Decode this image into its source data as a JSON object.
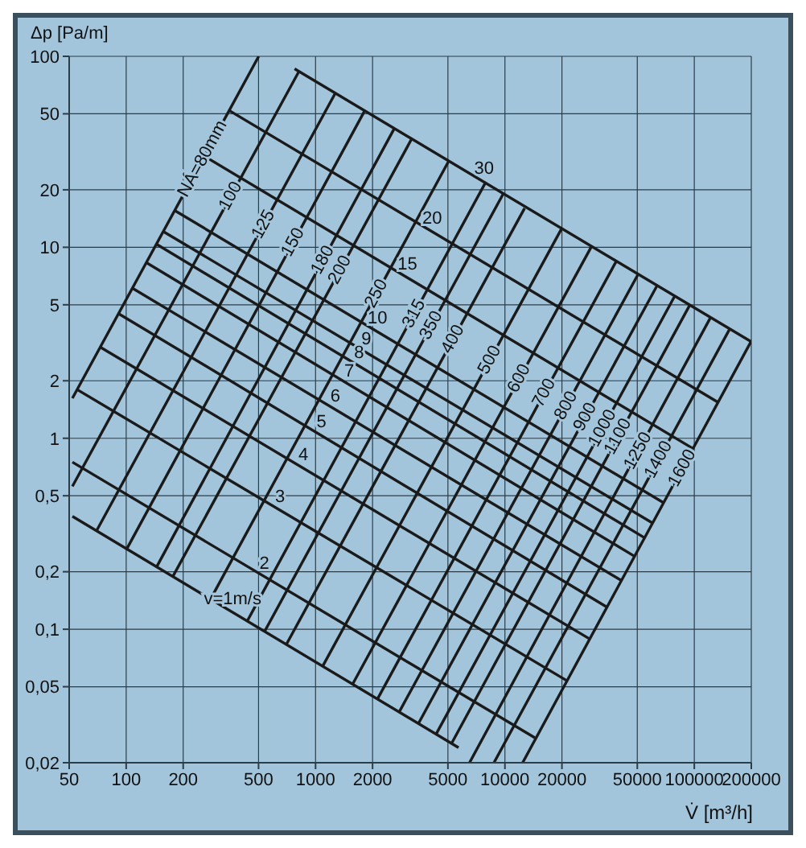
{
  "chart_data": {
    "type": "line",
    "xlabel": "V̇ [m³/h]",
    "ylabel": "Δp [Pa/m]",
    "log": "xy",
    "grid": true,
    "xlim": [
      50,
      200000
    ],
    "xticks": [
      50,
      100,
      200,
      500,
      1000,
      2000,
      5000,
      10000,
      20000,
      50000,
      100000,
      200000
    ],
    "ylim": [
      0.02,
      100
    ],
    "yticks": [
      {
        "value": 0.02,
        "label": "0,02"
      },
      {
        "value": 0.05,
        "label": "0,05"
      },
      {
        "value": 0.1,
        "label": "0,1"
      },
      {
        "value": 0.2,
        "label": "0,2"
      },
      {
        "value": 0.5,
        "label": "0,5"
      },
      1,
      2,
      5,
      10,
      20,
      50,
      100
    ],
    "series": [
      {
        "name": "NÁ=80mm",
        "color": "#1a1a1a",
        "x": [
          52,
          501
        ],
        "values": [
          1.62,
          100
        ]
      },
      {
        "name": "100",
        "color": "#1a1a1a",
        "x": [
          52,
          815
        ],
        "values": [
          0.56,
          83
        ]
      },
      {
        "name": "125",
        "color": "#1a1a1a",
        "x": [
          70,
          1270
        ],
        "values": [
          0.33,
          64
        ]
      },
      {
        "name": "150",
        "color": "#1a1a1a",
        "x": [
          100,
          1820
        ],
        "values": [
          0.26,
          52
        ]
      },
      {
        "name": "180",
        "color": "#1a1a1a",
        "x": [
          144,
          2610
        ],
        "values": [
          0.21,
          42
        ]
      },
      {
        "name": "200",
        "color": "#1a1a1a",
        "x": [
          177,
          3220
        ],
        "values": [
          0.19,
          37
        ]
      },
      {
        "name": "250",
        "color": "#1a1a1a",
        "x": [
          275,
          5020
        ],
        "values": [
          0.14,
          28
        ]
      },
      {
        "name": "315",
        "color": "#1a1a1a",
        "x": [
          435,
          7930
        ],
        "values": [
          0.11,
          22
        ]
      },
      {
        "name": "350",
        "color": "#1a1a1a",
        "x": [
          537,
          9780
        ],
        "values": [
          0.097,
          19
        ]
      },
      {
        "name": "400",
        "color": "#1a1a1a",
        "x": [
          700,
          12700
        ],
        "values": [
          0.083,
          16
        ]
      },
      {
        "name": "500",
        "color": "#1a1a1a",
        "x": [
          1090,
          19900
        ],
        "values": [
          0.064,
          12.5
        ]
      },
      {
        "name": "600",
        "color": "#1a1a1a",
        "x": [
          1560,
          28500
        ],
        "values": [
          0.051,
          10
        ]
      },
      {
        "name": "700",
        "color": "#1a1a1a",
        "x": [
          2120,
          38600
        ],
        "values": [
          0.043,
          8.4
        ]
      },
      {
        "name": "800",
        "color": "#1a1a1a",
        "x": [
          2770,
          50400
        ],
        "values": [
          0.037,
          7.2
        ]
      },
      {
        "name": "900",
        "color": "#1a1a1a",
        "x": [
          3490,
          63600
        ],
        "values": [
          0.032,
          6.3
        ]
      },
      {
        "name": "1000",
        "color": "#1a1a1a",
        "x": [
          4310,
          78400
        ],
        "values": [
          0.028,
          5.5
        ]
      },
      {
        "name": "1100",
        "color": "#1a1a1a",
        "x": [
          5200,
          94800
        ],
        "values": [
          0.025,
          5
        ]
      },
      {
        "name": "1250",
        "color": "#1a1a1a",
        "x": [
          6500,
          122000
        ],
        "values": [
          0.02,
          4.3
        ]
      },
      {
        "name": "1400",
        "color": "#1a1a1a",
        "x": [
          8750,
          153000
        ],
        "values": [
          0.02,
          3.7
        ]
      },
      {
        "name": "1600",
        "color": "#1a1a1a",
        "x": [
          12400,
          199000
        ],
        "values": [
          0.02,
          3.2
        ]
      },
      {
        "name": "v=1m/s",
        "color": "#1a1a1a",
        "x": [
          52,
          5690
        ],
        "values": [
          0.39,
          0.024
        ]
      },
      {
        "name": "2",
        "color": "#1a1a1a",
        "x": [
          52,
          14400
        ],
        "values": [
          0.75,
          0.027
        ]
      },
      {
        "name": "3",
        "color": "#1a1a1a",
        "x": [
          55,
          21100
        ],
        "values": [
          1.8,
          0.054
        ]
      },
      {
        "name": "4",
        "color": "#1a1a1a",
        "x": [
          73,
          28000
        ],
        "values": [
          3,
          0.089
        ]
      },
      {
        "name": "5",
        "color": "#1a1a1a",
        "x": [
          91,
          34800
        ],
        "values": [
          4.5,
          0.13
        ]
      },
      {
        "name": "6",
        "color": "#1a1a1a",
        "x": [
          108,
          41200
        ],
        "values": [
          6.1,
          0.18
        ]
      },
      {
        "name": "7",
        "color": "#1a1a1a",
        "x": [
          128,
          48700
        ],
        "values": [
          8.3,
          0.24
        ]
      },
      {
        "name": "8",
        "color": "#1a1a1a",
        "x": [
          144,
          55000
        ],
        "values": [
          10.4,
          0.3
        ]
      },
      {
        "name": "9",
        "color": "#1a1a1a",
        "x": [
          157,
          60100
        ],
        "values": [
          12.1,
          0.36
        ]
      },
      {
        "name": "10",
        "color": "#1a1a1a",
        "x": [
          180,
          68700
        ],
        "values": [
          15.6,
          0.46
        ]
      },
      {
        "name": "15",
        "color": "#1a1a1a",
        "x": [
          259,
          99000
        ],
        "values": [
          30,
          0.88
        ]
      },
      {
        "name": "20",
        "color": "#1a1a1a",
        "x": [
          350,
          134000
        ],
        "values": [
          52,
          1.54
        ]
      },
      {
        "name": "30",
        "color": "#1a1a1a",
        "x": [
          775,
          200000
        ],
        "values": [
          86,
          3.2
        ]
      }
    ]
  }
}
